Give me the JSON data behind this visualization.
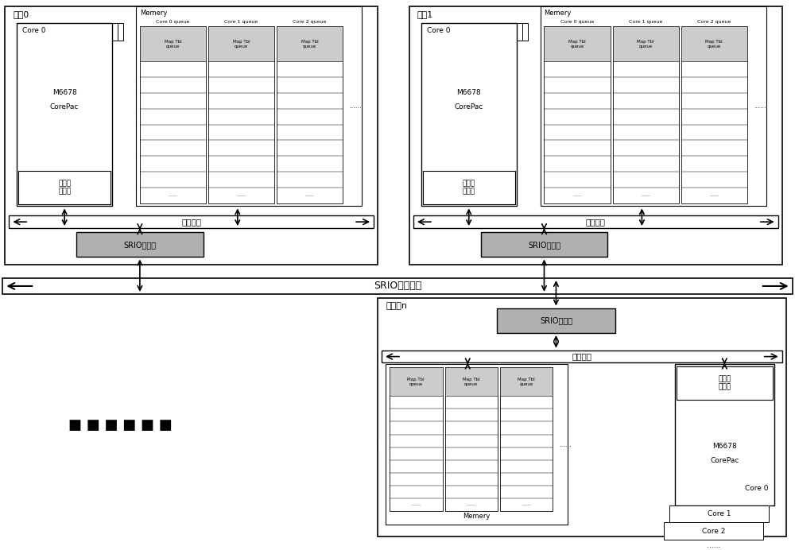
{
  "fig_width": 10.0,
  "fig_height": 6.92,
  "bg_color": "#ffffff",
  "box_edge_color": "#000000",
  "box_fill": "#ffffff",
  "gray_fill": "#cccccc",
  "srio_box_fill": "#b0b0b0",
  "proc0_label": "处理0",
  "proc1_label": "处理1",
  "procn_label": "处理器n",
  "srio_label": "SRIO控制器",
  "srio_bus_label": "SRIO交换总线",
  "cross_bus_label": "交叉总线",
  "memery_label": "Memery",
  "core0_label": "Core 0",
  "core1_label": "Core 1",
  "core2_label": "Core 2",
  "m6678_label": "M6678",
  "corepac_label": "CorePac",
  "comm_label": "通信代\n理模块",
  "core0_queue": "Core 0 queue",
  "core1_queue": "Core 1 queue",
  "core2_queue": "Core 2 queue",
  "map_tbl_queue": "Map Tbl\nqueue"
}
